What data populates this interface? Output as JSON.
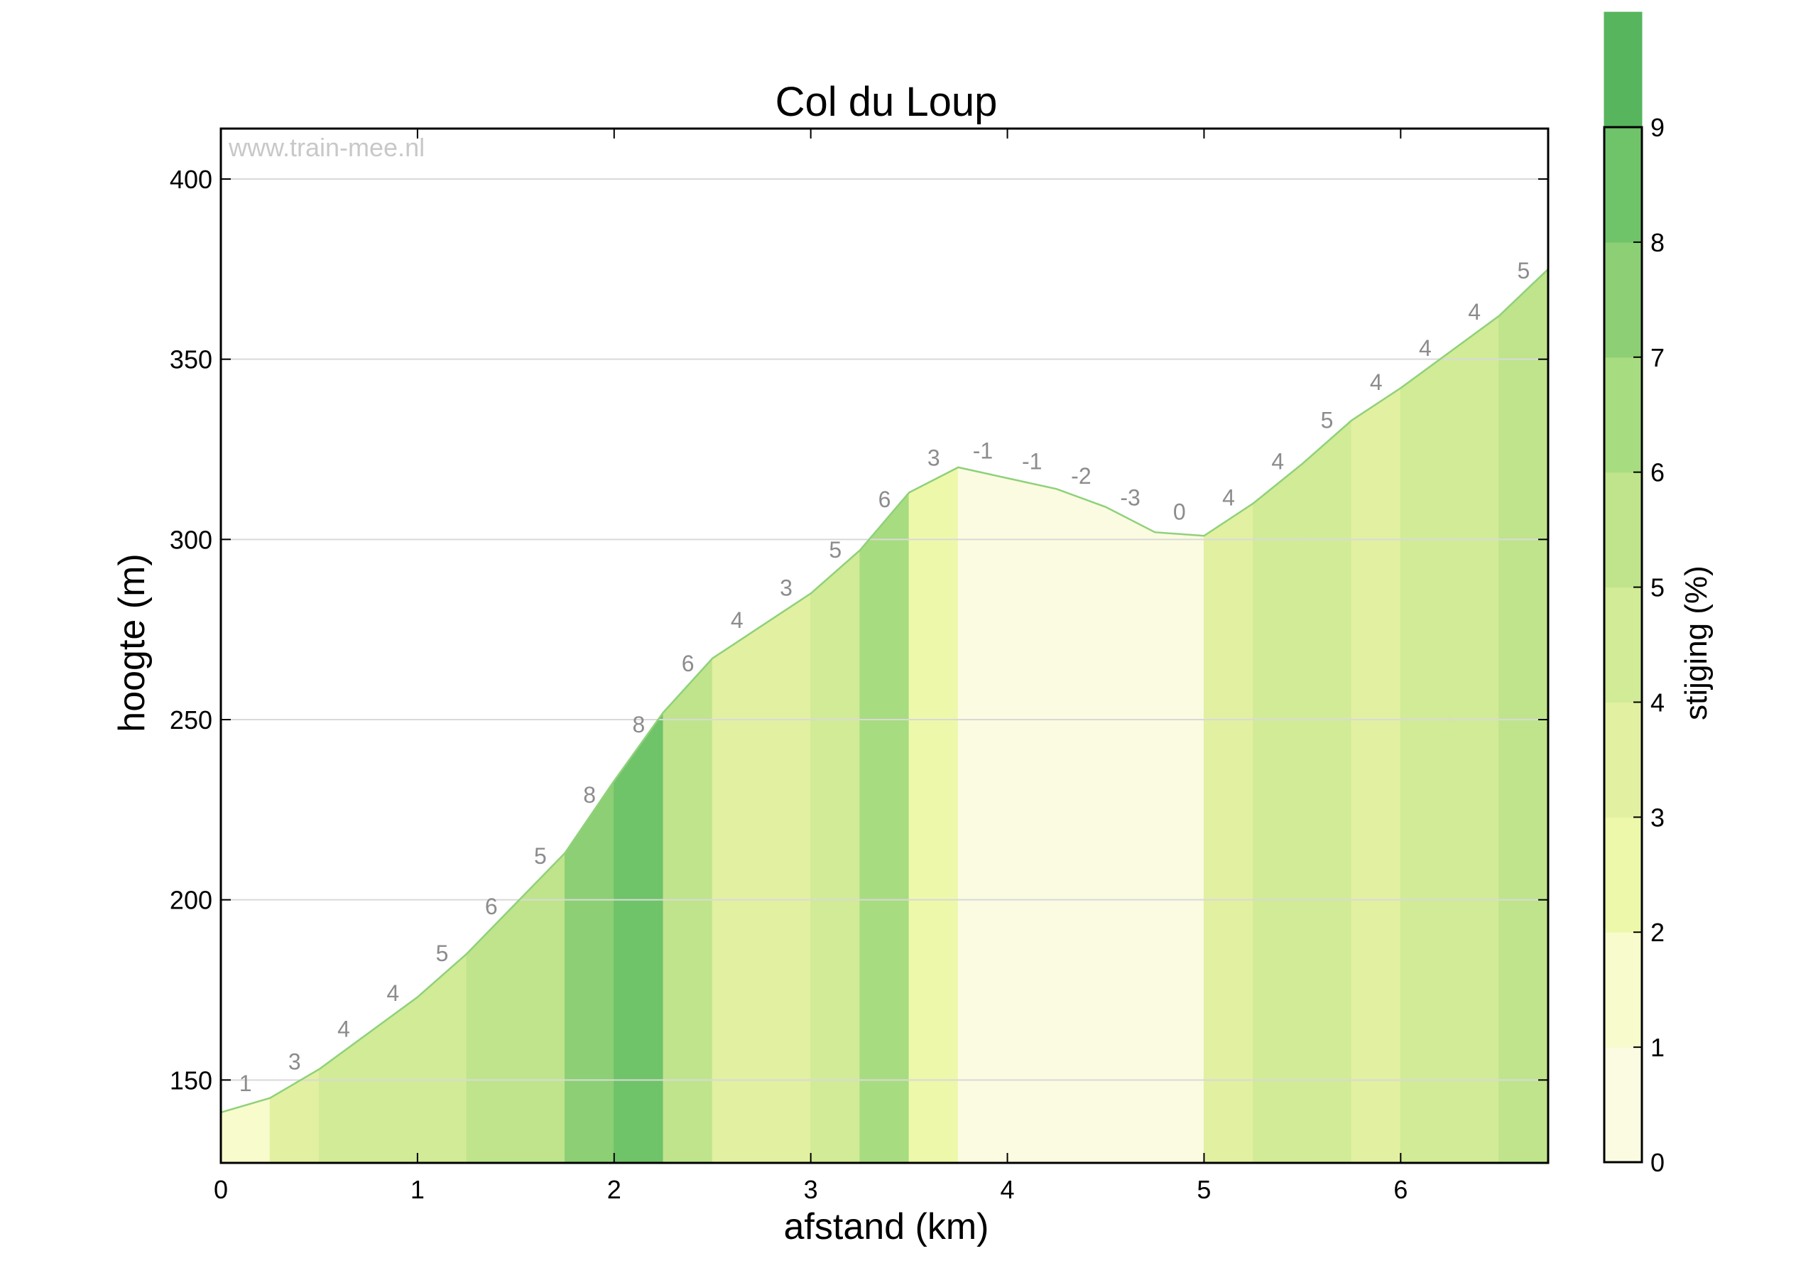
{
  "chart_data": {
    "type": "area",
    "title": "Col du Loup",
    "watermark": "www.train-mee.nl",
    "xlabel": "afstand (km)",
    "ylabel": "hoogte (m)",
    "colorbar_label": "stijging (%)",
    "xlim": [
      0,
      6.75
    ],
    "ylim": [
      127,
      414
    ],
    "x_ticks": [
      0,
      1,
      2,
      3,
      4,
      5,
      6
    ],
    "y_ticks": [
      150,
      200,
      250,
      300,
      350,
      400
    ],
    "colorbar_ticks": [
      0,
      1,
      2,
      3,
      4,
      5,
      6,
      7,
      8,
      9
    ],
    "colorbar_range": [
      0,
      9
    ],
    "grid": "horizontal",
    "colors": {
      "line": "#8fd17a",
      "grid": "#d9d9d9",
      "grade_text": "#8c8c8c",
      "scale": [
        "#fbfbe1",
        "#f8fbcc",
        "#eef8aa",
        "#e2f0a2",
        "#d1eb97",
        "#bfe48c",
        "#a8dc80",
        "#8ccf74",
        "#6fc368",
        "#57b55e"
      ]
    },
    "profile": [
      {
        "x": 0,
        "y": 141
      },
      {
        "x": 0.25,
        "y": 145
      },
      {
        "x": 0.5,
        "y": 153
      },
      {
        "x": 0.75,
        "y": 163
      },
      {
        "x": 1.0,
        "y": 173
      },
      {
        "x": 1.25,
        "y": 185
      },
      {
        "x": 1.5,
        "y": 199
      },
      {
        "x": 1.75,
        "y": 213
      },
      {
        "x": 2.0,
        "y": 233
      },
      {
        "x": 2.25,
        "y": 252
      },
      {
        "x": 2.5,
        "y": 267
      },
      {
        "x": 2.75,
        "y": 276
      },
      {
        "x": 3.0,
        "y": 285
      },
      {
        "x": 3.25,
        "y": 297
      },
      {
        "x": 3.5,
        "y": 313
      },
      {
        "x": 3.75,
        "y": 320
      },
      {
        "x": 4.0,
        "y": 317
      },
      {
        "x": 4.25,
        "y": 314
      },
      {
        "x": 4.5,
        "y": 309
      },
      {
        "x": 4.75,
        "y": 302
      },
      {
        "x": 5.0,
        "y": 301
      },
      {
        "x": 5.25,
        "y": 310
      },
      {
        "x": 5.5,
        "y": 321
      },
      {
        "x": 5.75,
        "y": 333
      },
      {
        "x": 6.0,
        "y": 342
      },
      {
        "x": 6.25,
        "y": 352
      },
      {
        "x": 6.5,
        "y": 362
      },
      {
        "x": 6.75,
        "y": 375
      }
    ],
    "segments": [
      {
        "x0": 0,
        "x1": 0.25,
        "grade": "1",
        "fill": 1.3
      },
      {
        "x0": 0.25,
        "x1": 0.5,
        "grade": "3",
        "fill": 3.2
      },
      {
        "x0": 0.5,
        "x1": 0.75,
        "grade": "4",
        "fill": 4.0
      },
      {
        "x0": 0.75,
        "x1": 1.0,
        "grade": "4",
        "fill": 4.2
      },
      {
        "x0": 1.0,
        "x1": 1.25,
        "grade": "5",
        "fill": 4.6
      },
      {
        "x0": 1.25,
        "x1": 1.5,
        "grade": "6",
        "fill": 5.5
      },
      {
        "x0": 1.5,
        "x1": 1.75,
        "grade": "5",
        "fill": 5.4
      },
      {
        "x0": 1.75,
        "x1": 2.0,
        "grade": "8",
        "fill": 7.6
      },
      {
        "x0": 2.0,
        "x1": 2.25,
        "grade": "8",
        "fill": 8.3
      },
      {
        "x0": 2.25,
        "x1": 2.5,
        "grade": "6",
        "fill": 5.6
      },
      {
        "x0": 2.5,
        "x1": 2.75,
        "grade": "4",
        "fill": 3.6
      },
      {
        "x0": 2.75,
        "x1": 3.0,
        "grade": "3",
        "fill": 3.4
      },
      {
        "x0": 3.0,
        "x1": 3.25,
        "grade": "5",
        "fill": 4.8
      },
      {
        "x0": 3.25,
        "x1": 3.5,
        "grade": "6",
        "fill": 6.4
      },
      {
        "x0": 3.5,
        "x1": 3.75,
        "grade": "3",
        "fill": 2.6
      },
      {
        "x0": 3.75,
        "x1": 4.0,
        "grade": "-1",
        "fill": 0
      },
      {
        "x0": 4.0,
        "x1": 4.25,
        "grade": "-1",
        "fill": 0
      },
      {
        "x0": 4.25,
        "x1": 4.5,
        "grade": "-2",
        "fill": 0
      },
      {
        "x0": 4.5,
        "x1": 4.75,
        "grade": "-3",
        "fill": 0
      },
      {
        "x0": 4.75,
        "x1": 5.0,
        "grade": "0",
        "fill": 0
      },
      {
        "x0": 5.0,
        "x1": 5.25,
        "grade": "4",
        "fill": 3.6
      },
      {
        "x0": 5.25,
        "x1": 5.5,
        "grade": "4",
        "fill": 4.3
      },
      {
        "x0": 5.5,
        "x1": 5.75,
        "grade": "5",
        "fill": 4.6
      },
      {
        "x0": 5.75,
        "x1": 6.0,
        "grade": "4",
        "fill": 3.4
      },
      {
        "x0": 6.0,
        "x1": 6.25,
        "grade": "4",
        "fill": 4.0
      },
      {
        "x0": 6.25,
        "x1": 6.5,
        "grade": "4",
        "fill": 4.0
      },
      {
        "x0": 6.5,
        "x1": 6.75,
        "grade": "5",
        "fill": 5.2
      }
    ]
  }
}
